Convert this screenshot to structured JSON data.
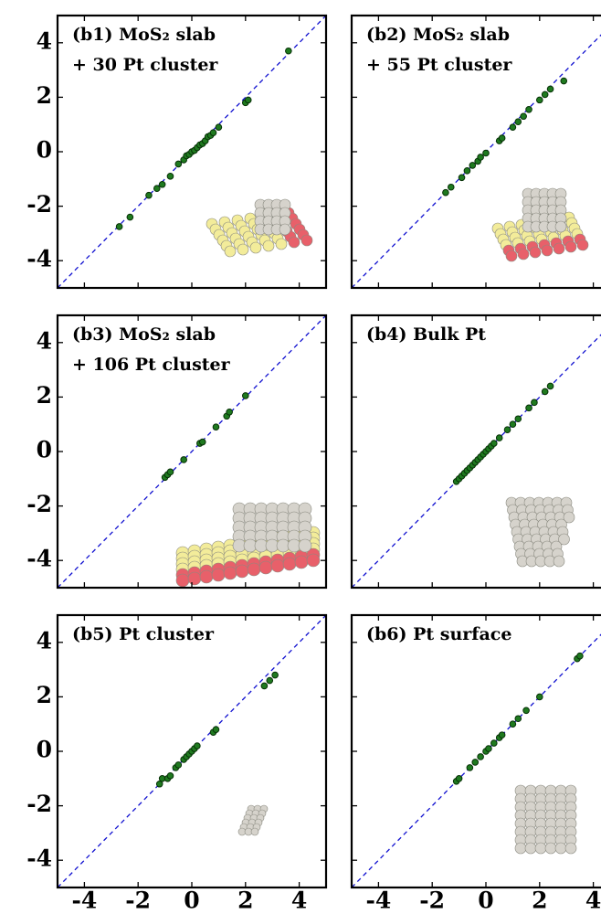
{
  "chart_data": [
    {
      "type": "scatter",
      "title": "(b1) MoS₂ slab",
      "subtitle": "+ 30 Pt cluster",
      "color": "#1f7a1f",
      "x": [
        -2.7,
        -2.3,
        -1.6,
        -1.3,
        -1.1,
        -0.8,
        -0.5,
        -0.3,
        -0.2,
        -0.1,
        0,
        0.1,
        0.2,
        0.3,
        0.4,
        0.5,
        0.6,
        0.7,
        0.8,
        1.0,
        2.0,
        2.1,
        3.6
      ],
      "y": [
        -2.75,
        -2.4,
        -1.6,
        -1.35,
        -1.2,
        -0.9,
        -0.45,
        -0.3,
        -0.15,
        -0.1,
        0,
        0.05,
        0.15,
        0.25,
        0.3,
        0.4,
        0.55,
        0.6,
        0.7,
        0.9,
        1.8,
        1.9,
        3.7
      ],
      "xlim": [
        -5,
        5
      ],
      "ylim": [
        -5,
        5
      ],
      "xticks": [
        -4,
        -2,
        0,
        2,
        4
      ],
      "yticks": [
        -4,
        -2,
        0,
        2,
        4
      ]
    },
    {
      "type": "scatter",
      "title": "(b2) MoS₂ slab",
      "subtitle": "+ 55 Pt cluster",
      "color": "#1f7a1f",
      "x": [
        -1.5,
        -1.3,
        -0.9,
        -0.7,
        -0.5,
        -0.3,
        -0.2,
        0,
        0.5,
        0.6,
        1.0,
        1.2,
        1.4,
        1.6,
        2.0,
        2.2,
        2.4,
        2.9
      ],
      "y": [
        -1.5,
        -1.3,
        -0.95,
        -0.7,
        -0.5,
        -0.35,
        -0.2,
        -0.05,
        0.4,
        0.5,
        0.9,
        1.1,
        1.3,
        1.55,
        1.9,
        2.1,
        2.3,
        2.6
      ],
      "xlim": [
        -5,
        5
      ],
      "ylim": [
        -5,
        5
      ],
      "xticks": [
        -4,
        -2,
        0,
        2,
        4
      ],
      "yticks": [
        -4,
        -2,
        0,
        2,
        4
      ]
    },
    {
      "type": "scatter",
      "title": "(b3) MoS₂ slab",
      "subtitle": "+ 106 Pt cluster",
      "color": "#1f7a1f",
      "x": [
        -1.0,
        -0.9,
        -0.8,
        -0.3,
        0.3,
        0.4,
        0.9,
        1.3,
        1.4,
        2.0
      ],
      "y": [
        -0.95,
        -0.85,
        -0.75,
        -0.3,
        0.3,
        0.35,
        0.9,
        1.3,
        1.45,
        2.05
      ],
      "xlim": [
        -5,
        5
      ],
      "ylim": [
        -5,
        5
      ],
      "xticks": [
        -4,
        -2,
        0,
        2,
        4
      ],
      "yticks": [
        -4,
        -2,
        0,
        2,
        4
      ]
    },
    {
      "type": "scatter",
      "title": "(b4) Bulk Pt",
      "color": "#1f7a1f",
      "x": [
        -1.1,
        -1.0,
        -0.9,
        -0.8,
        -0.7,
        -0.6,
        -0.5,
        -0.4,
        -0.3,
        -0.2,
        -0.1,
        0,
        0.1,
        0.2,
        0.3,
        0.5,
        0.8,
        1.0,
        1.2,
        1.6,
        1.8,
        2.2,
        2.4
      ],
      "y": [
        -1.1,
        -1.0,
        -0.9,
        -0.8,
        -0.7,
        -0.6,
        -0.5,
        -0.4,
        -0.3,
        -0.2,
        -0.1,
        0,
        0.1,
        0.2,
        0.3,
        0.5,
        0.8,
        1.0,
        1.2,
        1.6,
        1.8,
        2.2,
        2.4
      ],
      "xlim": [
        -5,
        5
      ],
      "ylim": [
        -5,
        5
      ],
      "xticks": [
        -4,
        -2,
        0,
        2,
        4
      ],
      "yticks": [
        -4,
        -2,
        0,
        2,
        4
      ]
    },
    {
      "type": "scatter",
      "title": "(b5) Pt cluster",
      "color": "#1f7a1f",
      "x": [
        -1.2,
        -1.1,
        -0.9,
        -0.8,
        -0.6,
        -0.5,
        -0.3,
        -0.2,
        -0.1,
        0,
        0.1,
        0.2,
        0.8,
        0.9,
        2.7,
        2.9,
        3.1
      ],
      "y": [
        -1.2,
        -1.0,
        -1.0,
        -0.9,
        -0.6,
        -0.5,
        -0.3,
        -0.2,
        -0.1,
        0,
        0.1,
        0.2,
        0.7,
        0.8,
        2.4,
        2.6,
        2.8
      ],
      "xlim": [
        -5,
        5
      ],
      "ylim": [
        -5,
        5
      ],
      "xticks": [
        -4,
        -2,
        0,
        2,
        4
      ],
      "yticks": [
        -4,
        -2,
        0,
        2,
        4
      ]
    },
    {
      "type": "scatter",
      "title": "(b6) Pt surface",
      "color": "#1f7a1f",
      "x": [
        -1.1,
        -1.0,
        -0.6,
        -0.4,
        -0.2,
        0,
        0.1,
        0.3,
        0.5,
        0.6,
        1.0,
        1.2,
        1.5,
        2.0,
        3.4,
        3.5
      ],
      "y": [
        -1.1,
        -1.0,
        -0.6,
        -0.4,
        -0.2,
        0,
        0.1,
        0.3,
        0.5,
        0.6,
        1.0,
        1.2,
        1.5,
        2.0,
        3.4,
        3.5
      ],
      "xlim": [
        -5,
        5
      ],
      "ylim": [
        -5,
        5
      ],
      "xticks": [
        -4,
        -2,
        0,
        2,
        4
      ],
      "yticks": [
        -4,
        -2,
        0,
        2,
        4
      ]
    }
  ]
}
